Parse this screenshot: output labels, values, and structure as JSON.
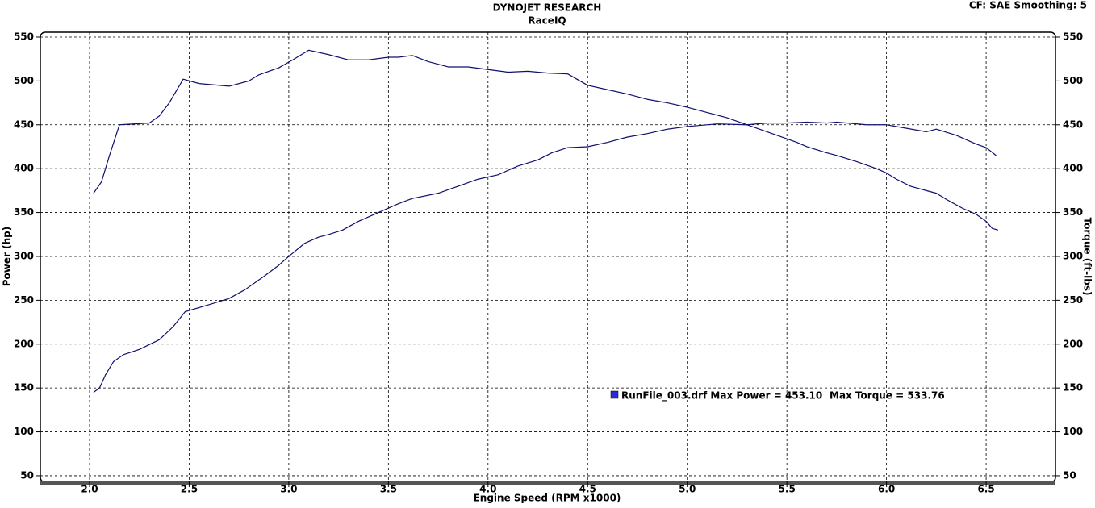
{
  "chart_data": {
    "type": "line",
    "title": "DYNOJET RESEARCH",
    "subtitle": "RaceIQ",
    "settings_text": "CF: SAE  Smoothing: 5",
    "x_label": "Engine Speed (RPM x1000)",
    "y_label": "Power (hp)",
    "y2_label": "Torque (ft-lbs)",
    "legend": {
      "swatch_color": "#2a2ad8",
      "texts": [
        "RunFile_003.drf Max Power = 453.10",
        "Max Torque = 533.76"
      ]
    },
    "grid": true,
    "xlim": [
      1.753,
      6.848
    ],
    "ylim": [
      42.6,
      555.5
    ],
    "y2lim": [
      42.6,
      555.5
    ],
    "xticks": [
      {
        "value": 2,
        "label": "2.0"
      },
      {
        "value": 2.5,
        "label": "2.5"
      },
      {
        "value": 3,
        "label": "3.0"
      },
      {
        "value": 3.5,
        "label": "3.5"
      },
      {
        "value": 4,
        "label": "4.0"
      },
      {
        "value": 4.5,
        "label": "4.5"
      },
      {
        "value": 5,
        "label": "5.0"
      },
      {
        "value": 5.5,
        "label": "5.5"
      },
      {
        "value": 6,
        "label": "6.0"
      },
      {
        "value": 6.5,
        "label": "6.5"
      }
    ],
    "yticks": [
      50,
      100,
      150,
      200,
      250,
      300,
      350,
      400,
      450,
      500,
      550
    ],
    "y2ticks": [
      50,
      100,
      150,
      200,
      250,
      300,
      350,
      400,
      450,
      500,
      550
    ],
    "series": [
      {
        "color": "#10106e",
        "axis": "y",
        "x": [
          2.02,
          2.05,
          2.08,
          2.12,
          2.17,
          2.25,
          2.35,
          2.42,
          2.48,
          2.6,
          2.7,
          2.78,
          2.88,
          2.95,
          3.0,
          3.08,
          3.15,
          3.2,
          3.27,
          3.35,
          3.45,
          3.55,
          3.62,
          3.75,
          3.85,
          3.95,
          4.05,
          4.15,
          4.25,
          4.32,
          4.4,
          4.5,
          4.6,
          4.7,
          4.8,
          4.9,
          5.0,
          5.15,
          5.3,
          5.4,
          5.5,
          5.6,
          5.7,
          5.75,
          5.9,
          6.0,
          6.1,
          6.2,
          6.25,
          6.35,
          6.45,
          6.5,
          6.55
        ],
        "values": [
          145,
          150,
          165,
          180,
          188,
          194,
          205,
          220,
          237,
          245,
          252,
          262,
          278,
          290,
          300,
          315,
          322,
          325,
          330,
          340,
          350,
          360,
          366,
          372,
          380,
          388,
          393,
          403,
          410,
          418,
          424,
          425,
          430,
          436,
          440,
          445,
          448,
          451,
          450,
          452,
          452,
          453,
          452,
          453,
          450,
          450,
          446,
          442,
          445,
          438,
          428,
          424,
          415
        ]
      },
      {
        "color": "#10106e",
        "axis": "y2",
        "x": [
          2.02,
          2.06,
          2.1,
          2.15,
          2.3,
          2.35,
          2.4,
          2.47,
          2.55,
          2.7,
          2.8,
          2.85,
          2.95,
          3.02,
          3.1,
          3.2,
          3.3,
          3.4,
          3.5,
          3.55,
          3.62,
          3.7,
          3.8,
          3.9,
          4.0,
          4.1,
          4.2,
          4.3,
          4.4,
          4.5,
          4.6,
          4.7,
          4.8,
          4.9,
          5.0,
          5.1,
          5.2,
          5.3,
          5.4,
          5.45,
          5.55,
          5.6,
          5.7,
          5.75,
          5.85,
          5.95,
          6.0,
          6.05,
          6.12,
          6.2,
          6.25,
          6.3,
          6.38,
          6.45,
          6.5,
          6.53,
          6.56
        ],
        "values": [
          372,
          385,
          415,
          450,
          452,
          460,
          475,
          502,
          497,
          494,
          500,
          507,
          515,
          524,
          535,
          530,
          524,
          524,
          527,
          527,
          529,
          522,
          516,
          516,
          513,
          510,
          511,
          509,
          508,
          495,
          490,
          485,
          479,
          475,
          470,
          464,
          458,
          450,
          442,
          438,
          430,
          425,
          418,
          415,
          408,
          400,
          395,
          388,
          380,
          375,
          372,
          365,
          355,
          348,
          340,
          332,
          330
        ]
      }
    ]
  }
}
